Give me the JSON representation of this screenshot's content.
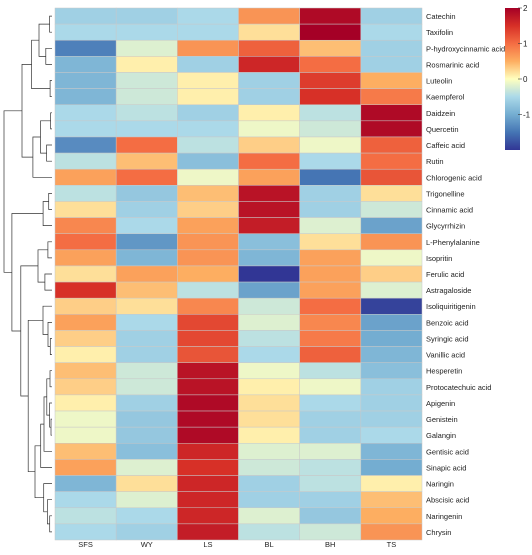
{
  "chart_data": {
    "type": "heatmap",
    "title": "",
    "xlabel": "",
    "ylabel": "",
    "columns": [
      "SFS",
      "WY",
      "LS",
      "BL",
      "BH",
      "TS"
    ],
    "rows": [
      "Catechin",
      "Taxifolin",
      "P-hydroxycinnamic acid",
      "Rosmarinic acid",
      "Luteolin",
      "Kaempferol",
      "Daidzein",
      "Quercetin",
      "Caffeic acid",
      "Rutin",
      "Chlorogenic acid",
      "Trigonelline",
      "Cinnamic acid",
      "Glycyrrhizin",
      "L-Phenylalanine",
      "Isopritin",
      "Ferulic acid",
      "Astragaloside",
      "Isoliquiritigenin",
      "Benzoic acid",
      "Syringic acid",
      "Vanillic acid",
      "Hesperetin",
      "Protocatechuic acid",
      "Apigenin",
      "Genistein",
      "Galangin",
      "Gentisic acid",
      "Sinapic acid",
      "Naringin",
      "Abscisic acid",
      "Naringenin",
      "Chrysin"
    ],
    "values": [
      [
        -0.6,
        -0.6,
        -0.5,
        0.7,
        1.9,
        -0.6
      ],
      [
        -0.5,
        -0.5,
        -0.5,
        0.2,
        2.0,
        -0.5
      ],
      [
        -1.4,
        -0.2,
        0.7,
        1.1,
        0.4,
        -0.6
      ],
      [
        -0.9,
        0.1,
        -0.6,
        1.6,
        1.0,
        -0.6
      ],
      [
        -0.9,
        -0.3,
        0.1,
        -0.6,
        1.4,
        0.5
      ],
      [
        -0.9,
        -0.3,
        0.1,
        -0.6,
        1.5,
        0.9
      ],
      [
        -0.5,
        -0.4,
        -0.6,
        0.1,
        -0.4,
        1.9
      ],
      [
        -0.5,
        -0.5,
        -0.5,
        -0.1,
        -0.3,
        1.9
      ],
      [
        -1.3,
        1.0,
        -0.4,
        0.3,
        -0.1,
        1.1
      ],
      [
        -0.4,
        0.4,
        -0.8,
        1.0,
        -0.5,
        1.0
      ],
      [
        0.6,
        1.0,
        -0.1,
        0.6,
        -1.5,
        1.2
      ],
      [
        -0.4,
        -0.7,
        0.4,
        1.8,
        -0.6,
        0.2
      ],
      [
        0.2,
        -0.6,
        0.3,
        1.8,
        -0.6,
        -0.3
      ],
      [
        0.8,
        -0.5,
        0.6,
        1.7,
        -0.2,
        -1.1
      ],
      [
        1.0,
        -1.2,
        0.7,
        -0.8,
        0.2,
        0.7
      ],
      [
        0.6,
        -0.9,
        0.7,
        -0.9,
        0.6,
        -0.1
      ],
      [
        0.2,
        0.6,
        0.5,
        -2.0,
        0.6,
        0.3
      ],
      [
        1.5,
        0.4,
        -0.4,
        -1.1,
        0.6,
        -0.2
      ],
      [
        0.3,
        0.2,
        0.8,
        -0.3,
        1.0,
        -1.9
      ],
      [
        0.6,
        -0.5,
        1.3,
        -0.2,
        0.8,
        -1.1
      ],
      [
        0.3,
        -0.6,
        1.3,
        -0.4,
        0.9,
        -1.0
      ],
      [
        0.1,
        -0.6,
        1.2,
        -0.5,
        1.1,
        -0.9
      ],
      [
        0.4,
        -0.3,
        1.8,
        -0.1,
        -0.4,
        -0.8
      ],
      [
        0.3,
        -0.3,
        1.8,
        0.1,
        -0.1,
        -0.6
      ],
      [
        0.1,
        -0.6,
        1.9,
        0.2,
        -0.5,
        -0.6
      ],
      [
        -0.1,
        -0.7,
        1.9,
        0.2,
        -0.6,
        -0.6
      ],
      [
        -0.1,
        -0.7,
        1.9,
        0.1,
        -0.6,
        -0.5
      ],
      [
        0.4,
        -0.8,
        1.6,
        -0.2,
        -0.2,
        -0.9
      ],
      [
        0.6,
        -0.2,
        1.5,
        -0.3,
        -0.4,
        -1.0
      ],
      [
        -0.9,
        0.2,
        1.6,
        -0.6,
        -0.4,
        0.1
      ],
      [
        -0.5,
        -0.2,
        1.6,
        -0.6,
        -0.6,
        0.4
      ],
      [
        -0.4,
        -0.5,
        1.6,
        -0.2,
        -0.7,
        0.5
      ],
      [
        -0.5,
        -0.6,
        1.7,
        -0.4,
        -0.3,
        0.7
      ]
    ],
    "color_scale": {
      "ticks": [
        2,
        1,
        0,
        -1
      ],
      "range": [
        -2,
        2
      ],
      "low_color": "#313695",
      "mid_color": "#ffffbf",
      "high_color": "#a50026"
    },
    "dendrogram": "rows-left"
  }
}
